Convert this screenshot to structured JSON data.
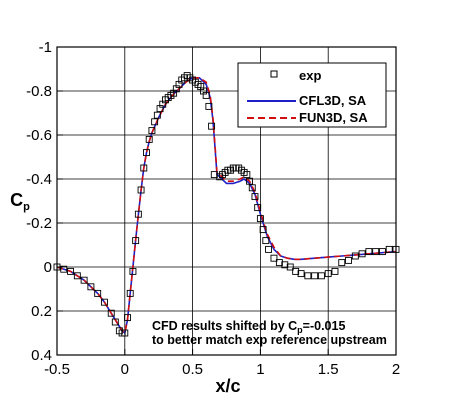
{
  "chart_data": {
    "type": "line",
    "xlabel": "x/c",
    "ylabel_main": "C",
    "ylabel_sub": "p",
    "xlim": [
      -0.5,
      2
    ],
    "ylim": [
      0.4,
      -1
    ],
    "y_inverted": true,
    "grid": true,
    "legend_position": "top-right",
    "x_ticks": [
      {
        "value": -0.5,
        "label": "-0.5"
      },
      {
        "value": 0,
        "label": "0"
      },
      {
        "value": 0.5,
        "label": "0.5"
      },
      {
        "value": 1,
        "label": "1"
      },
      {
        "value": 1.5,
        "label": "1.5"
      },
      {
        "value": 2,
        "label": "2"
      }
    ],
    "y_ticks": [
      {
        "value": -1,
        "label": "-1"
      },
      {
        "value": -0.8,
        "label": "-0.8"
      },
      {
        "value": -0.6,
        "label": "-0.6"
      },
      {
        "value": -0.4,
        "label": "-0.4"
      },
      {
        "value": -0.2,
        "label": "-0.2"
      },
      {
        "value": 0,
        "label": "0"
      },
      {
        "value": 0.2,
        "label": "0.2"
      },
      {
        "value": 0.4,
        "label": "0.4"
      }
    ],
    "series": [
      {
        "name": "exp",
        "kind": "markers",
        "marker": "square",
        "color": "#000000",
        "x": [
          -0.5,
          -0.45,
          -0.4,
          -0.35,
          -0.3,
          -0.25,
          -0.2,
          -0.15,
          -0.1,
          -0.07,
          -0.04,
          -0.02,
          0.0,
          0.02,
          0.04,
          0.06,
          0.08,
          0.1,
          0.12,
          0.14,
          0.16,
          0.18,
          0.2,
          0.22,
          0.24,
          0.26,
          0.28,
          0.3,
          0.32,
          0.34,
          0.36,
          0.38,
          0.4,
          0.42,
          0.44,
          0.46,
          0.48,
          0.5,
          0.52,
          0.54,
          0.56,
          0.58,
          0.6,
          0.62,
          0.64,
          0.66,
          0.7,
          0.72,
          0.74,
          0.76,
          0.78,
          0.8,
          0.82,
          0.84,
          0.86,
          0.88,
          0.9,
          0.92,
          0.94,
          0.96,
          0.98,
          1.0,
          1.02,
          1.04,
          1.06,
          1.1,
          1.14,
          1.18,
          1.22,
          1.26,
          1.3,
          1.35,
          1.4,
          1.45,
          1.5,
          1.55,
          1.6,
          1.65,
          1.7,
          1.75,
          1.8,
          1.85,
          1.9,
          1.95,
          2.0
        ],
        "y": [
          0.0,
          0.01,
          0.02,
          0.04,
          0.06,
          0.09,
          0.12,
          0.16,
          0.21,
          0.25,
          0.29,
          0.3,
          0.3,
          0.23,
          0.12,
          0.02,
          -0.12,
          -0.24,
          -0.35,
          -0.45,
          -0.52,
          -0.58,
          -0.62,
          -0.66,
          -0.69,
          -0.72,
          -0.74,
          -0.76,
          -0.77,
          -0.78,
          -0.79,
          -0.81,
          -0.83,
          -0.85,
          -0.86,
          -0.87,
          -0.86,
          -0.85,
          -0.84,
          -0.83,
          -0.82,
          -0.8,
          -0.78,
          -0.73,
          -0.64,
          -0.42,
          -0.41,
          -0.42,
          -0.43,
          -0.44,
          -0.44,
          -0.45,
          -0.45,
          -0.45,
          -0.44,
          -0.43,
          -0.42,
          -0.39,
          -0.36,
          -0.32,
          -0.27,
          -0.22,
          -0.17,
          -0.12,
          -0.08,
          -0.04,
          -0.02,
          -0.01,
          0.0,
          0.02,
          0.03,
          0.04,
          0.04,
          0.04,
          0.03,
          0.02,
          -0.02,
          -0.03,
          -0.05,
          -0.06,
          -0.07,
          -0.07,
          -0.07,
          -0.08,
          -0.08
        ]
      },
      {
        "name": "CFL3D, SA",
        "kind": "line",
        "dash": "solid",
        "color": "#1f1fc8",
        "x": [
          -0.5,
          -0.4,
          -0.3,
          -0.2,
          -0.15,
          -0.1,
          -0.05,
          -0.02,
          0.0,
          0.02,
          0.04,
          0.06,
          0.08,
          0.1,
          0.12,
          0.14,
          0.16,
          0.18,
          0.2,
          0.25,
          0.3,
          0.35,
          0.4,
          0.45,
          0.5,
          0.55,
          0.6,
          0.63,
          0.65,
          0.67,
          0.68,
          0.7,
          0.75,
          0.8,
          0.85,
          0.88,
          0.92,
          0.96,
          1.0,
          1.05,
          1.1,
          1.15,
          1.2,
          1.25,
          1.3,
          1.4,
          1.5,
          1.6,
          1.7,
          1.8,
          1.9,
          2.0
        ],
        "y": [
          0.0,
          0.02,
          0.06,
          0.12,
          0.16,
          0.21,
          0.26,
          0.29,
          0.3,
          0.24,
          0.12,
          0.0,
          -0.12,
          -0.24,
          -0.35,
          -0.45,
          -0.52,
          -0.57,
          -0.61,
          -0.68,
          -0.74,
          -0.78,
          -0.81,
          -0.84,
          -0.86,
          -0.86,
          -0.83,
          -0.77,
          -0.67,
          -0.5,
          -0.42,
          -0.41,
          -0.38,
          -0.38,
          -0.39,
          -0.4,
          -0.38,
          -0.33,
          -0.24,
          -0.14,
          -0.08,
          -0.05,
          -0.04,
          -0.035,
          -0.035,
          -0.04,
          -0.045,
          -0.05,
          -0.055,
          -0.06,
          -0.065,
          -0.07
        ]
      },
      {
        "name": "FUN3D, SA",
        "kind": "line",
        "dash": "dashed",
        "color": "#d01010",
        "x": [
          -0.5,
          -0.4,
          -0.3,
          -0.2,
          -0.15,
          -0.1,
          -0.05,
          -0.02,
          0.0,
          0.02,
          0.04,
          0.06,
          0.08,
          0.1,
          0.12,
          0.14,
          0.16,
          0.18,
          0.2,
          0.25,
          0.3,
          0.35,
          0.4,
          0.45,
          0.5,
          0.55,
          0.6,
          0.63,
          0.65,
          0.67,
          0.68,
          0.7,
          0.75,
          0.8,
          0.85,
          0.88,
          0.92,
          0.96,
          1.0,
          1.05,
          1.1,
          1.15,
          1.2,
          1.25,
          1.3,
          1.4,
          1.5,
          1.6,
          1.7,
          1.8,
          1.9,
          2.0
        ],
        "y": [
          0.0,
          0.02,
          0.06,
          0.12,
          0.16,
          0.21,
          0.26,
          0.29,
          0.3,
          0.24,
          0.12,
          0.0,
          -0.12,
          -0.24,
          -0.35,
          -0.45,
          -0.52,
          -0.57,
          -0.61,
          -0.68,
          -0.74,
          -0.78,
          -0.81,
          -0.84,
          -0.86,
          -0.86,
          -0.84,
          -0.78,
          -0.68,
          -0.51,
          -0.43,
          -0.42,
          -0.39,
          -0.39,
          -0.4,
          -0.41,
          -0.39,
          -0.34,
          -0.25,
          -0.15,
          -0.09,
          -0.05,
          -0.04,
          -0.035,
          -0.035,
          -0.04,
          -0.045,
          -0.05,
          -0.055,
          -0.06,
          -0.065,
          -0.07
        ]
      }
    ],
    "annotation_lines": [
      "CFD results shifted by C",
      "p",
      "=-0.015",
      "to better match exp reference upstream"
    ]
  }
}
